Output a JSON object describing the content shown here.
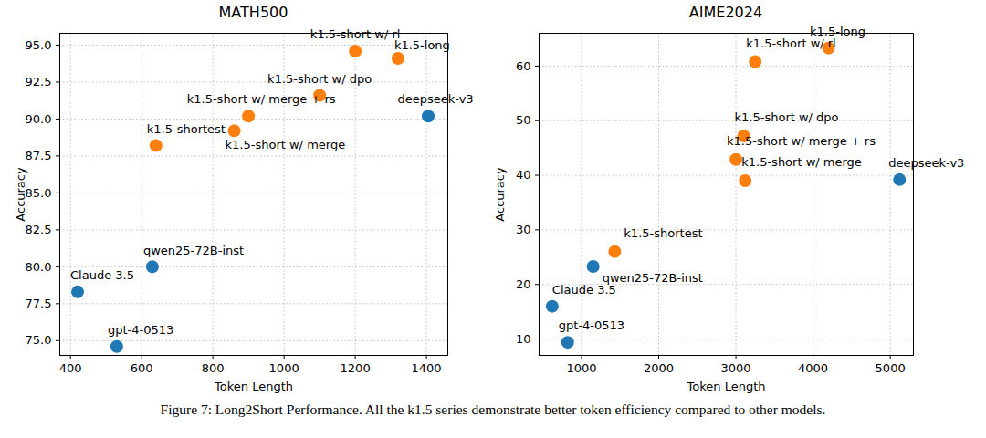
{
  "chart_data": [
    {
      "type": "scatter",
      "title": "MATH500",
      "x_label": "Token Length",
      "y_label": "Accuracy",
      "xlim": [
        370,
        1460
      ],
      "xticks": [
        400,
        600,
        800,
        1000,
        1200,
        1400
      ],
      "ylim": [
        74,
        95.8
      ],
      "yticks": [
        {
          "value": 75,
          "label": "75.0"
        },
        77.5,
        {
          "value": 80,
          "label": "80.0"
        },
        82.5,
        {
          "value": 85,
          "label": "85.0"
        },
        87.5,
        {
          "value": 90,
          "label": "90.0"
        },
        92.5,
        {
          "value": 95,
          "label": "95.0"
        }
      ],
      "grid": true,
      "marker": "circle",
      "points": [
        {
          "label": "k1.5-short w/ rl",
          "x": 1200,
          "y": 94.6,
          "color": "#ff7f0e"
        },
        {
          "label": "k1.5-long",
          "x": 1320,
          "y": 94.1,
          "color": "#ff7f0e"
        },
        {
          "label": "k1.5-short w/ dpo",
          "x": 1100,
          "y": 91.6,
          "color": "#ff7f0e"
        },
        {
          "label": "k1.5-short w/ merge + rs",
          "x": 900,
          "y": 90.2,
          "color": "#ff7f0e"
        },
        {
          "label": "k1.5-short w/ merge",
          "x": 860,
          "y": 89.2,
          "color": "#ff7f0e"
        },
        {
          "label": "k1.5-shortest",
          "x": 640,
          "y": 88.2,
          "color": "#ff7f0e"
        },
        {
          "label": "deepseek-v3",
          "x": 1405,
          "y": 90.2,
          "color": "#1f77b4"
        },
        {
          "label": "qwen25-72B-inst",
          "x": 630,
          "y": 80.0,
          "color": "#1f77b4"
        },
        {
          "label": "Claude 3.5",
          "x": 420,
          "y": 78.3,
          "color": "#1f77b4"
        },
        {
          "label": "gpt-4-0513",
          "x": 530,
          "y": 74.6,
          "color": "#1f77b4"
        }
      ]
    },
    {
      "type": "scatter",
      "title": "AIME2024",
      "x_label": "Token Length",
      "y_label": "Accuracy",
      "xlim": [
        450,
        5300
      ],
      "xticks": [
        1000,
        2000,
        3000,
        4000,
        5000
      ],
      "ylim": [
        7,
        66
      ],
      "yticks": [
        10,
        20,
        30,
        40,
        50,
        60
      ],
      "grid": true,
      "marker": "circle",
      "points": [
        {
          "label": "k1.5-long",
          "x": 4200,
          "y": 63.3,
          "color": "#ff7f0e"
        },
        {
          "label": "k1.5-short w/ rl",
          "x": 3250,
          "y": 60.8,
          "color": "#ff7f0e"
        },
        {
          "label": "k1.5-short w/ dpo",
          "x": 3100,
          "y": 47.2,
          "color": "#ff7f0e"
        },
        {
          "label": "k1.5-short w/ merge + rs",
          "x": 3000,
          "y": 42.9,
          "color": "#ff7f0e"
        },
        {
          "label": "k1.5-short w/ merge",
          "x": 3120,
          "y": 39.0,
          "color": "#ff7f0e"
        },
        {
          "label": "deepseek-v3",
          "x": 5120,
          "y": 39.2,
          "color": "#1f77b4"
        },
        {
          "label": "k1.5-shortest",
          "x": 1430,
          "y": 26.0,
          "color": "#ff7f0e"
        },
        {
          "label": "qwen25-72B-inst",
          "x": 1150,
          "y": 23.3,
          "color": "#1f77b4"
        },
        {
          "label": "Claude 3.5",
          "x": 620,
          "y": 16.0,
          "color": "#1f77b4"
        },
        {
          "label": "gpt-4-0513",
          "x": 820,
          "y": 9.4,
          "color": "#1f77b4"
        }
      ]
    }
  ],
  "caption": "Figure 7: Long2Short Performance. All the k1.5 series demonstrate better token efficiency compared to other models."
}
